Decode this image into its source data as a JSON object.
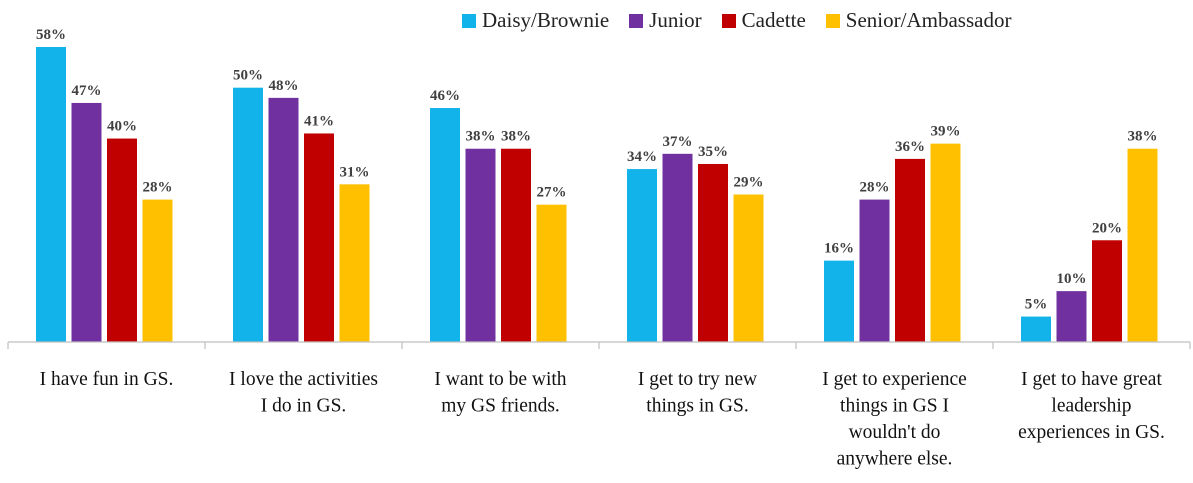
{
  "chart_data": {
    "type": "bar",
    "title": "",
    "xlabel": "",
    "ylabel": "",
    "ylim": [
      0,
      60
    ],
    "grid": false,
    "legend_position": "top-right",
    "value_suffix": "%",
    "categories": [
      [
        "I have fun in GS."
      ],
      [
        "I love the activities",
        "I do in GS."
      ],
      [
        "I want to be with",
        "my GS friends."
      ],
      [
        "I get to try new",
        "things in GS."
      ],
      [
        "I get to experience",
        "things in GS I",
        "wouldn't do",
        "anywhere else."
      ],
      [
        "I get to have great",
        "leadership",
        "experiences in GS."
      ]
    ],
    "series": [
      {
        "name": "Daisy/Brownie",
        "color": "#12B2EA",
        "values": [
          58,
          50,
          46,
          34,
          16,
          5
        ]
      },
      {
        "name": "Junior",
        "color": "#7030A0",
        "values": [
          47,
          48,
          38,
          37,
          28,
          10
        ]
      },
      {
        "name": "Cadette",
        "color": "#C00000",
        "values": [
          40,
          41,
          38,
          35,
          36,
          20
        ]
      },
      {
        "name": "Senior/Ambassador",
        "color": "#FFC000",
        "values": [
          28,
          31,
          27,
          29,
          39,
          38
        ]
      }
    ]
  }
}
